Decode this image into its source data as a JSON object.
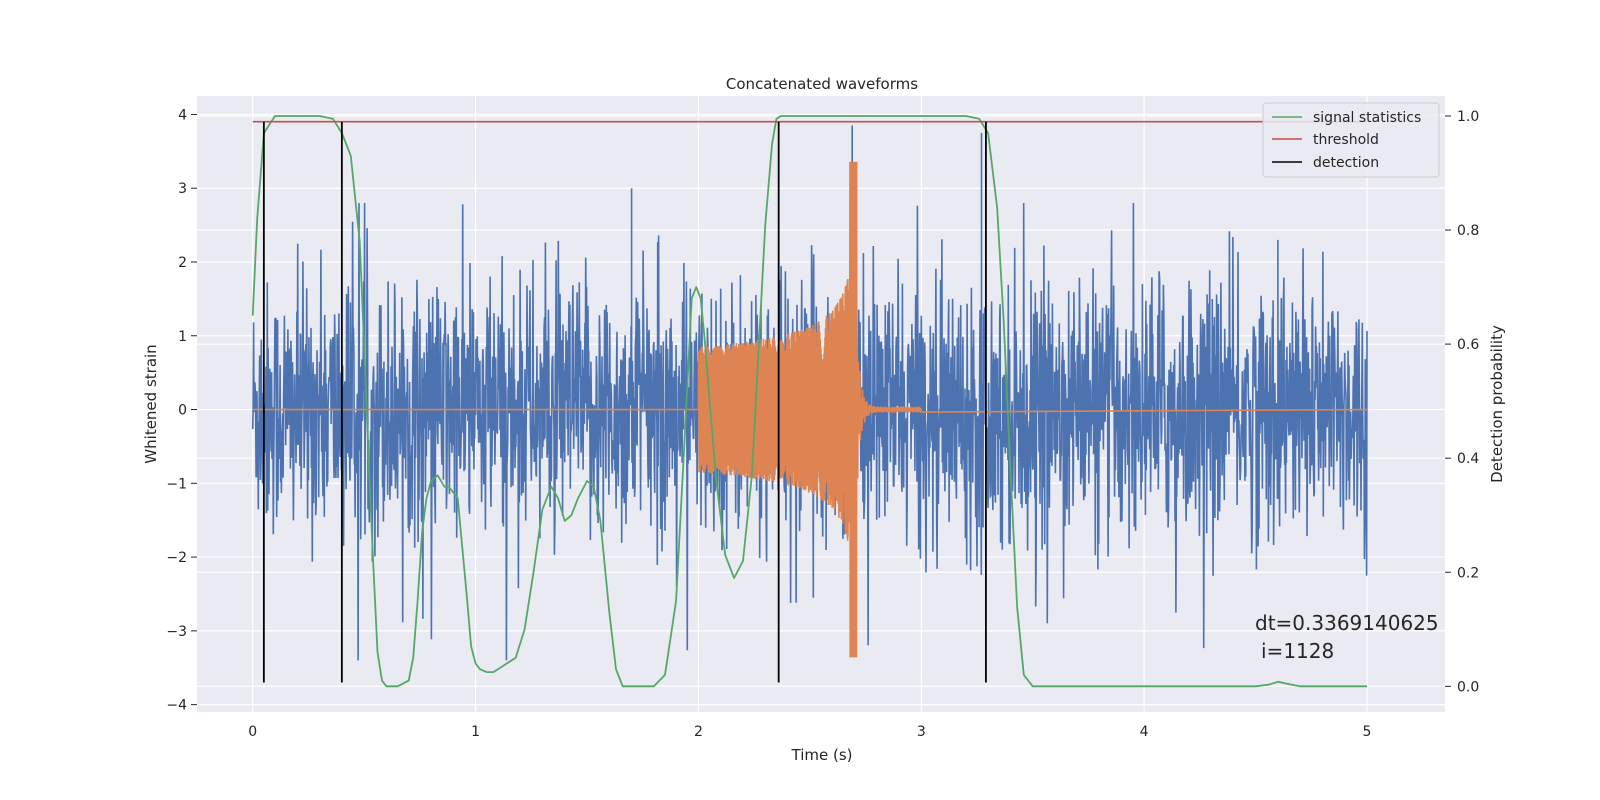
{
  "chart_data": {
    "type": "line",
    "title": "Concatenated waveforms",
    "xlabel": "Time (s)",
    "ylabel": "Whitened strain",
    "y2label": "Detection probability",
    "xlim": [
      -0.25,
      5.35
    ],
    "ylim": [
      -4.1,
      4.25
    ],
    "y2lim": [
      -0.045,
      1.035
    ],
    "xticks": [
      0,
      1,
      2,
      3,
      4,
      5
    ],
    "yticks": [
      -4,
      -3,
      -2,
      -1,
      0,
      1,
      2,
      3,
      4
    ],
    "y2ticks": [
      0.0,
      0.2,
      0.4,
      0.6,
      0.8,
      1.0
    ],
    "grid": true,
    "legend_position": "top-right",
    "colors": {
      "background": "#EAEAF2",
      "grid": "#FFFFFF",
      "noise": "#4C72B0",
      "template": "#DD8452",
      "signal_statistics": "#55A868",
      "threshold": "#C44E52",
      "detection": "#000000"
    },
    "series": [
      {
        "name": "signal statistics",
        "axis": "right",
        "x": [
          0.0,
          0.02,
          0.05,
          0.1,
          0.2,
          0.3,
          0.36,
          0.4,
          0.44,
          0.48,
          0.5,
          0.52,
          0.54,
          0.56,
          0.58,
          0.6,
          0.65,
          0.7,
          0.72,
          0.74,
          0.76,
          0.78,
          0.8,
          0.83,
          0.86,
          0.88,
          0.92,
          0.96,
          0.98,
          1.0,
          1.02,
          1.05,
          1.08,
          1.1,
          1.14,
          1.18,
          1.22,
          1.26,
          1.3,
          1.34,
          1.37,
          1.4,
          1.43,
          1.46,
          1.5,
          1.53,
          1.56,
          1.6,
          1.63,
          1.66,
          1.7,
          1.73,
          1.76,
          1.8,
          1.85,
          1.9,
          1.94,
          1.97,
          1.99,
          2.01,
          2.03,
          2.05,
          2.08,
          2.12,
          2.16,
          2.2,
          2.24,
          2.27,
          2.3,
          2.33,
          2.35,
          2.37,
          2.4,
          2.5,
          2.8,
          3.2,
          3.26,
          3.3,
          3.34,
          3.37,
          3.4,
          3.43,
          3.46,
          3.5,
          4.0,
          4.5,
          4.56,
          4.6,
          4.66,
          4.7,
          5.0
        ],
        "values": [
          0.65,
          0.82,
          0.97,
          1.0,
          1.0,
          1.0,
          0.995,
          0.97,
          0.93,
          0.78,
          0.6,
          0.4,
          0.22,
          0.06,
          0.01,
          0.0,
          0.0,
          0.01,
          0.05,
          0.15,
          0.27,
          0.33,
          0.36,
          0.37,
          0.35,
          0.35,
          0.33,
          0.16,
          0.07,
          0.04,
          0.03,
          0.025,
          0.025,
          0.03,
          0.04,
          0.05,
          0.1,
          0.2,
          0.31,
          0.35,
          0.33,
          0.29,
          0.3,
          0.33,
          0.36,
          0.35,
          0.29,
          0.13,
          0.03,
          0.0,
          0.0,
          0.0,
          0.0,
          0.0,
          0.02,
          0.15,
          0.45,
          0.68,
          0.7,
          0.68,
          0.6,
          0.5,
          0.36,
          0.23,
          0.19,
          0.22,
          0.37,
          0.59,
          0.81,
          0.95,
          0.995,
          1.0,
          1.0,
          1.0,
          1.0,
          1.0,
          0.995,
          0.97,
          0.84,
          0.64,
          0.38,
          0.14,
          0.02,
          0.0,
          0.0,
          0.0,
          0.003,
          0.008,
          0.003,
          0.0,
          0.0
        ]
      },
      {
        "name": "threshold",
        "axis": "right",
        "x": [
          0.0,
          5.0
        ],
        "values": [
          0.99,
          0.99
        ]
      },
      {
        "name": "detection",
        "axis": "left",
        "type": "vlines",
        "x": [
          0.05,
          0.4,
          2.36,
          3.29
        ],
        "ymin": -3.7,
        "ymax": 3.9
      },
      {
        "axis": "left",
        "type": "noise",
        "x_range": [
          0.0,
          5.0
        ],
        "envelope_abs": 2.8,
        "peaks": [
          {
            "x": 2.69,
            "y": 3.85
          },
          {
            "x": 2.69,
            "y": -3.0
          },
          {
            "x": 3.27,
            "y": 3.75
          },
          {
            "x": 1.7,
            "y": 3.0
          },
          {
            "x": 4.6,
            "y": 2.3
          }
        ]
      },
      {
        "axis": "left",
        "type": "chirp",
        "x_range": [
          2.0,
          2.71
        ],
        "start_amplitude": 0.45,
        "peak_amplitude": 3.2,
        "ringdown_end": 3.0
      }
    ],
    "annotations": [
      "dt=0.3369140625",
      "i=1128"
    ]
  },
  "legend": {
    "items": [
      "signal statistics",
      "threshold",
      "detection"
    ]
  }
}
